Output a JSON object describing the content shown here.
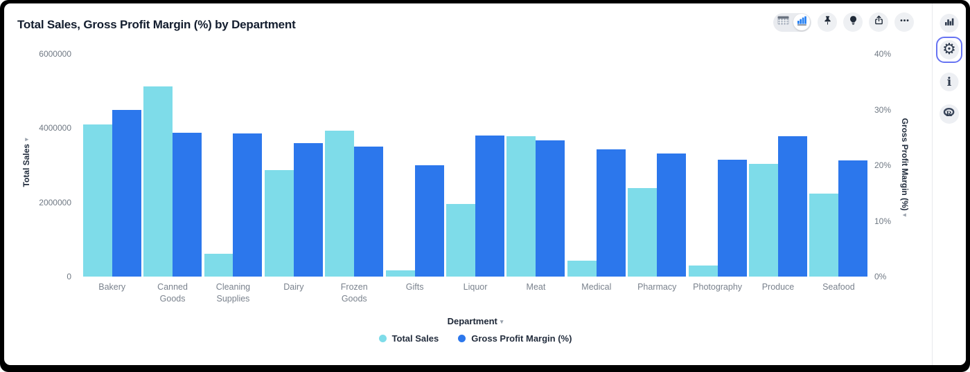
{
  "header": {
    "title": "Total Sales, Gross Profit Margin (%) by Department"
  },
  "toolbar": {
    "view_toggle": [
      {
        "icon": "table-icon",
        "selected": false
      },
      {
        "icon": "bar-chart-icon",
        "selected": true
      }
    ],
    "buttons": [
      {
        "icon": "pin-icon"
      },
      {
        "icon": "lightbulb-icon"
      },
      {
        "icon": "share-icon"
      },
      {
        "icon": "ellipsis-icon"
      }
    ]
  },
  "sidebar": {
    "buttons": [
      {
        "icon": "bar-chart-icon",
        "selected": false
      },
      {
        "icon": "gear-icon",
        "selected": true
      },
      {
        "icon": "info-icon",
        "selected": false
      },
      {
        "icon": "r-logo-icon",
        "selected": false
      }
    ]
  },
  "colors": {
    "total_sales": "#7EDCE9",
    "gross_profit_margin": "#2C77EC",
    "active_icon_blue": "#1E7CF2",
    "selected_outline": "#6673F2"
  },
  "chart_data": {
    "type": "bar",
    "title": "Total Sales, Gross Profit Margin (%) by Department",
    "categories": [
      "Bakery",
      "Canned Goods",
      "Cleaning Supplies",
      "Dairy",
      "Frozen Goods",
      "Gifts",
      "Liquor",
      "Meat",
      "Medical",
      "Pharmacy",
      "Photography",
      "Produce",
      "Seafood"
    ],
    "series": [
      {
        "name": "Total Sales",
        "axis": "left",
        "color": "#7EDCE9",
        "values": [
          4100000,
          5130000,
          610000,
          2870000,
          3940000,
          160000,
          1950000,
          3780000,
          420000,
          2380000,
          300000,
          3030000,
          2230000
        ]
      },
      {
        "name": "Gross Profit Margin (%)",
        "axis": "right",
        "color": "#2C77EC",
        "values": [
          30.0,
          25.8,
          25.7,
          24.0,
          23.4,
          20.0,
          25.3,
          24.5,
          22.8,
          22.1,
          21.0,
          25.2,
          20.9
        ]
      }
    ],
    "xlabel": "Department",
    "ylabel_left": "Total Sales",
    "ylabel_right": "Gross Profit Margin (%)",
    "ylim_left": [
      0,
      6000000
    ],
    "ylim_right": [
      0,
      40
    ],
    "yticks_left": [
      {
        "label": "0",
        "value": 0
      },
      {
        "label": "2000000",
        "value": 2000000
      },
      {
        "label": "4000000",
        "value": 4000000
      },
      {
        "label": "6000000",
        "value": 6000000
      }
    ],
    "yticks_right": [
      {
        "label": "0%",
        "value": 0
      },
      {
        "label": "10%",
        "value": 10
      },
      {
        "label": "20%",
        "value": 20
      },
      {
        "label": "30%",
        "value": 30
      },
      {
        "label": "40%",
        "value": 40
      }
    ],
    "grid": false,
    "legend_position": "bottom"
  }
}
